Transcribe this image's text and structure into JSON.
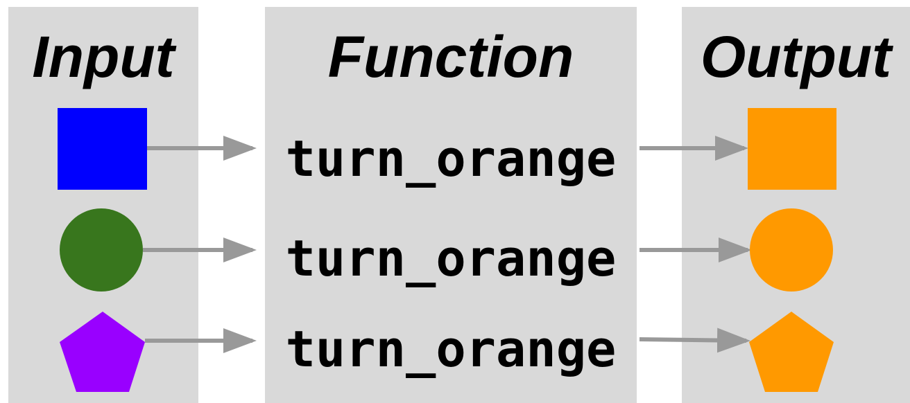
{
  "headings": {
    "input": "Input",
    "function": "Function",
    "output": "Output"
  },
  "rows": [
    {
      "input_shape": "square",
      "input_color": "#0000ff",
      "function": "turn_orange",
      "output_shape": "square",
      "output_color": "#ff9900"
    },
    {
      "input_shape": "circle",
      "input_color": "#38761d",
      "function": "turn_orange",
      "output_shape": "circle",
      "output_color": "#ff9900"
    },
    {
      "input_shape": "pentagon",
      "input_color": "#9900ff",
      "function": "turn_orange",
      "output_shape": "pentagon",
      "output_color": "#ff9900"
    }
  ],
  "colors": {
    "panel": "#d9d9d9",
    "arrow": "#999999",
    "text": "#000000"
  }
}
